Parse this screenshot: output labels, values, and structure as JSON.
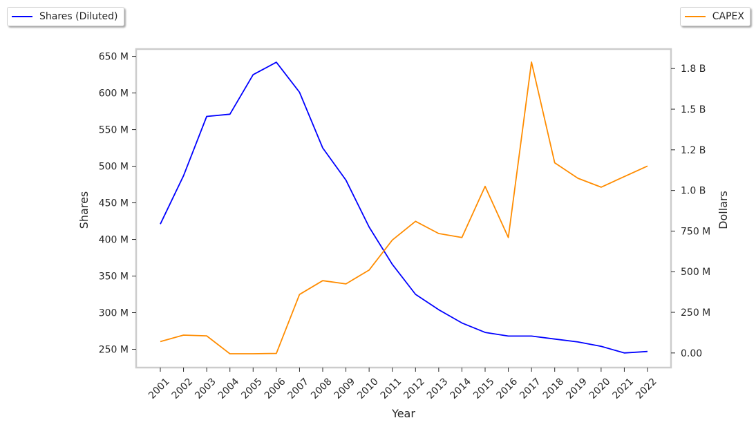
{
  "legend_left": {
    "label": "Shares (Diluted)",
    "color": "#0000ff"
  },
  "legend_right": {
    "label": "CAPEX",
    "color": "#ff8c00"
  },
  "chart_data": {
    "type": "line",
    "title": "",
    "xlabel": "Year",
    "ylabel_left": "Shares",
    "ylabel_right": "Dollars",
    "categories": [
      "2001",
      "2002",
      "2003",
      "2004",
      "2005",
      "2006",
      "2007",
      "2008",
      "2009",
      "2010",
      "2011",
      "2012",
      "2013",
      "2014",
      "2015",
      "2016",
      "2017",
      "2018",
      "2019",
      "2020",
      "2021",
      "2022"
    ],
    "left_axis": {
      "ylim": [
        225,
        660
      ],
      "ticks": [
        250,
        300,
        350,
        400,
        450,
        500,
        550,
        600,
        650
      ],
      "tick_labels": [
        "250 M",
        "300 M",
        "350 M",
        "400 M",
        "450 M",
        "500 M",
        "550 M",
        "600 M",
        "650 M"
      ]
    },
    "right_axis": {
      "ylim": [
        -90,
        1870
      ],
      "ticks": [
        0,
        250,
        500,
        750,
        1000,
        1250,
        1500,
        1750
      ],
      "tick_labels": [
        "0.00",
        "250 M",
        "500 M",
        "750 M",
        "1.0 B",
        "1.2 B",
        "1.5 B",
        "1.8 B"
      ]
    },
    "series": [
      {
        "name": "Shares (Diluted)",
        "axis": "left",
        "color": "#0000ff",
        "values": [
          421,
          487,
          568,
          571,
          625,
          642,
          601,
          525,
          481,
          417,
          366,
          325,
          304,
          286,
          273,
          268,
          268,
          264,
          260,
          254,
          245,
          247
        ]
      },
      {
        "name": "CAPEX",
        "axis": "right",
        "color": "#ff8c00",
        "values": [
          70,
          110,
          105,
          -5,
          -5,
          -3,
          360,
          445,
          425,
          510,
          695,
          810,
          735,
          710,
          1025,
          710,
          1790,
          1170,
          1075,
          1020,
          1085,
          1150
        ]
      }
    ],
    "grid": false,
    "legend_placement": "top-left and top-right, outside plot"
  }
}
